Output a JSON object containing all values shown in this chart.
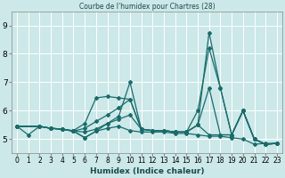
{
  "title": "Courbe de l'humidex pour Chartres (28)",
  "xlabel": "Humidex (Indice chaleur)",
  "xlim": [
    -0.5,
    23.5
  ],
  "ylim": [
    4.5,
    9.5
  ],
  "yticks": [
    5,
    6,
    7,
    8,
    9
  ],
  "xticks": [
    0,
    1,
    2,
    3,
    4,
    5,
    6,
    7,
    8,
    9,
    10,
    11,
    12,
    13,
    14,
    15,
    16,
    17,
    18,
    19,
    20,
    21,
    22,
    23
  ],
  "bg_color": "#cce8e8",
  "grid_color": "#ffffff",
  "line_color": "#1a6b6b",
  "lines": [
    {
      "x": [
        0,
        1,
        2,
        3,
        4,
        5,
        6,
        7,
        8,
        9,
        10,
        11,
        12,
        13,
        14,
        15,
        16,
        17,
        18,
        19,
        20,
        21,
        22,
        23
      ],
      "y": [
        5.45,
        5.15,
        5.45,
        5.38,
        5.35,
        5.28,
        5.05,
        5.28,
        5.38,
        5.45,
        5.3,
        5.25,
        5.25,
        5.25,
        5.2,
        5.2,
        5.15,
        5.1,
        5.1,
        5.05,
        5.0,
        4.82,
        4.85,
        4.85
      ]
    },
    {
      "x": [
        0,
        2,
        3,
        4,
        5,
        6,
        7,
        8,
        9,
        10,
        11,
        12,
        13,
        14,
        15,
        16,
        17,
        18,
        19,
        20,
        21,
        22,
        23
      ],
      "y": [
        5.45,
        5.45,
        5.38,
        5.35,
        5.28,
        5.05,
        5.28,
        5.55,
        5.8,
        7.0,
        5.35,
        5.3,
        5.3,
        5.25,
        5.25,
        6.0,
        8.2,
        6.8,
        5.15,
        6.0,
        5.0,
        4.82,
        4.85
      ]
    },
    {
      "x": [
        0,
        2,
        3,
        4,
        5,
        6,
        7,
        8,
        9,
        10,
        11,
        12,
        13,
        14,
        15,
        16,
        17,
        18,
        19,
        20,
        21,
        22,
        23
      ],
      "y": [
        5.45,
        5.45,
        5.38,
        5.35,
        5.28,
        5.25,
        5.35,
        5.55,
        5.7,
        5.85,
        5.35,
        5.3,
        5.3,
        5.25,
        5.25,
        5.5,
        8.75,
        6.8,
        5.15,
        6.0,
        5.0,
        4.82,
        4.85
      ]
    },
    {
      "x": [
        0,
        2,
        3,
        4,
        5,
        6,
        7,
        8,
        9,
        10,
        11,
        12,
        13,
        14,
        15,
        16,
        17,
        18,
        19,
        20,
        21,
        22,
        23
      ],
      "y": [
        5.45,
        5.45,
        5.38,
        5.35,
        5.28,
        5.38,
        5.62,
        5.85,
        6.1,
        6.4,
        5.35,
        5.3,
        5.3,
        5.25,
        5.25,
        5.5,
        6.8,
        5.15,
        5.15,
        6.0,
        5.0,
        4.82,
        4.85
      ]
    },
    {
      "x": [
        0,
        2,
        3,
        4,
        5,
        6,
        7,
        8,
        9,
        10,
        11,
        12,
        13,
        14,
        15,
        16,
        17,
        18,
        19,
        20,
        21,
        22,
        23
      ],
      "y": [
        5.45,
        5.45,
        5.38,
        5.35,
        5.3,
        5.55,
        6.45,
        6.5,
        6.45,
        6.4,
        5.35,
        5.3,
        5.3,
        5.25,
        5.25,
        5.5,
        5.15,
        5.15,
        5.15,
        6.0,
        5.0,
        4.82,
        4.85
      ]
    }
  ]
}
